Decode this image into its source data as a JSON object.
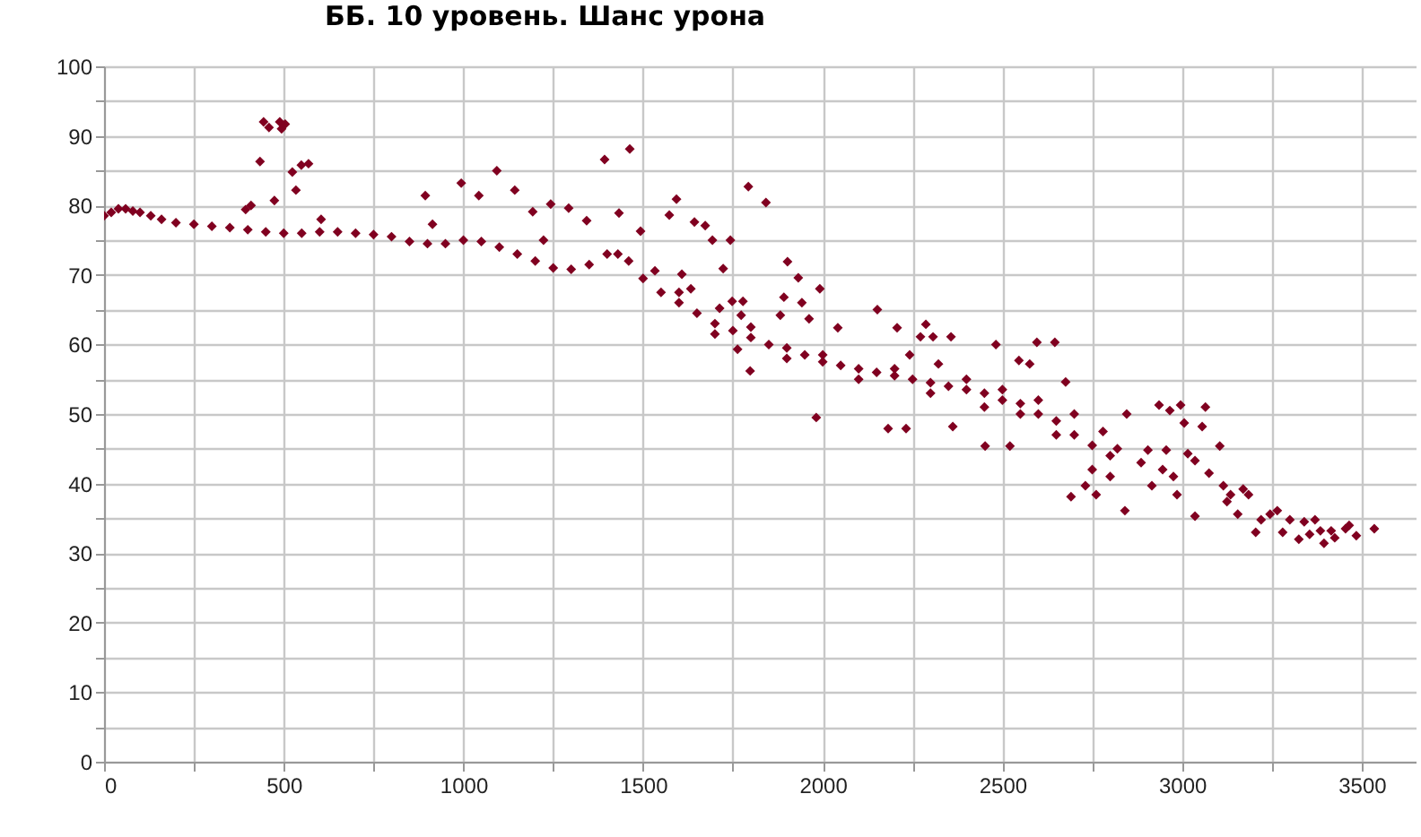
{
  "chart_data": {
    "type": "scatter",
    "title": "ББ. 10 уровень. Шанс урона",
    "color": "#800020",
    "marker": "diamond",
    "grid": true,
    "x": [
      0,
      20,
      40,
      60,
      80,
      100,
      130,
      160,
      200,
      250,
      300,
      350,
      400,
      450,
      500,
      550,
      600,
      650,
      700,
      750,
      800,
      850,
      900,
      950,
      1000,
      1050,
      1100,
      1150,
      1200,
      1250,
      1300,
      1350,
      1400,
      1430,
      1460,
      1500,
      1550,
      1600,
      1650,
      1700,
      1750,
      1800,
      1850,
      1900,
      1950,
      2000,
      2050,
      2100,
      2150,
      2200,
      2250,
      2300,
      2350,
      2400,
      2450,
      2500,
      2550,
      2600,
      2650,
      2700,
      2750,
      2800,
      1600,
      1700,
      1800,
      1900,
      2000,
      2100,
      2200,
      2300,
      2400,
      2450,
      2500,
      2550,
      2600,
      2650,
      2700,
      2750,
      2780,
      2800,
      2820,
      444,
      459,
      489,
      504,
      494,
      434,
      524,
      549,
      569,
      534,
      474,
      394,
      409,
      604,
      894,
      914,
      994,
      1043,
      1093,
      1143,
      1193,
      1223,
      1243,
      1293,
      1343,
      1393,
      1463,
      1433,
      1493,
      1533,
      1573,
      1593,
      1608,
      1633,
      1643,
      1673,
      1693,
      1723,
      1743,
      1793,
      1713,
      1748,
      1773,
      1778,
      1763,
      1798,
      1842,
      1902,
      1932,
      1992,
      1892,
      1942,
      1882,
      1962,
      2152,
      2042,
      2207,
      2287,
      2272,
      2307,
      2357,
      2482,
      2596,
      2646,
      2546,
      2576,
      2322,
      2242,
      2676,
      1982,
      2182,
      2232,
      2362,
      2452,
      2521,
      2691,
      2731,
      2761,
      2841,
      2846,
      2905,
      2936,
      2996,
      2966,
      3065,
      3006,
      3056,
      2956,
      3016,
      3036,
      3105,
      2916,
      2946,
      2886,
      2976,
      2986,
      3075,
      3115,
      3135,
      3125,
      3170,
      3185,
      3155,
      3036,
      3205,
      3220,
      3245,
      3265,
      3280,
      3300,
      3325,
      3340,
      3355,
      3370,
      3385,
      3395,
      3415,
      3425,
      3455,
      3465,
      3485,
      3535
    ],
    "values": [
      78.5,
      79,
      79.5,
      79.5,
      79.2,
      79,
      78.5,
      78,
      77.5,
      77.3,
      77,
      76.8,
      76.5,
      76.2,
      76,
      76,
      76.2,
      76.2,
      76,
      75.8,
      75.5,
      74.8,
      74.5,
      74.5,
      75,
      74.8,
      74,
      73,
      72,
      71,
      70.8,
      71.5,
      73,
      73,
      72,
      69.5,
      67.5,
      66,
      64.5,
      63,
      62,
      61,
      60,
      59.5,
      58.5,
      57.5,
      57,
      56.5,
      56,
      55.5,
      55,
      54.5,
      54,
      53.5,
      53,
      52,
      51.5,
      50,
      49,
      47,
      45.5,
      44,
      67.5,
      61.5,
      62.5,
      58,
      58.5,
      55,
      56.5,
      53,
      55,
      51,
      53.5,
      50,
      52,
      47,
      50,
      42,
      47.5,
      41,
      45,
      92,
      91.2,
      92,
      91.7,
      91,
      86.3,
      84.8,
      85.8,
      86,
      82.2,
      80.7,
      79.4,
      80,
      78,
      81.4,
      77.3,
      83.2,
      81.4,
      85,
      82.2,
      79.1,
      75,
      80.2,
      79.6,
      77.8,
      86.6,
      88.1,
      78.9,
      76.3,
      70.6,
      78.6,
      80.9,
      70.1,
      68,
      77.6,
      77.1,
      75,
      70.9,
      75,
      82.7,
      65.2,
      66.2,
      64.2,
      66.2,
      59.3,
      56.2,
      80.4,
      71.9,
      69.6,
      68,
      66.8,
      66,
      64.2,
      63.7,
      65,
      62.4,
      62.4,
      62.9,
      61.1,
      61.1,
      61.1,
      60,
      60.3,
      60.3,
      57.7,
      57.2,
      57.2,
      58.5,
      54.6,
      49.5,
      47.9,
      47.9,
      48.2,
      45.4,
      45.4,
      38.1,
      39.7,
      38.4,
      36.1,
      50,
      44.8,
      51.3,
      51.3,
      50.5,
      51,
      48.7,
      48.2,
      44.8,
      44.3,
      43.3,
      45.4,
      39.7,
      42,
      43,
      41,
      38.4,
      41.5,
      39.7,
      38.4,
      37.4,
      39.2,
      38.4,
      35.6,
      35.3,
      33,
      34.8,
      35.6,
      36.1,
      33,
      34.8,
      32,
      34.5,
      32.7,
      34.8,
      33.2,
      31.4,
      33.2,
      32.2,
      33.5,
      34,
      32.5,
      33.5
    ],
    "xlim": [
      0,
      3650
    ],
    "xticks": [
      0,
      {
        "value": 250,
        "label": null
      },
      500,
      {
        "value": 750,
        "label": null
      },
      1000,
      {
        "value": 1250,
        "label": null
      },
      1500,
      {
        "value": 1750,
        "label": null
      },
      2000,
      {
        "value": 2250,
        "label": null
      },
      2500,
      {
        "value": 2750,
        "label": null
      },
      3000,
      {
        "value": 3250,
        "label": null
      },
      3500
    ],
    "ylim": [
      0,
      100
    ],
    "yticks": [
      0,
      {
        "value": 5,
        "label": null
      },
      10,
      {
        "value": 15,
        "label": null
      },
      20,
      {
        "value": 25,
        "label": null
      },
      30,
      {
        "value": 35,
        "label": null
      },
      40,
      {
        "value": 45,
        "label": null
      },
      50,
      {
        "value": 55,
        "label": null
      },
      60,
      {
        "value": 65,
        "label": null
      },
      70,
      {
        "value": 75,
        "label": null
      },
      80,
      {
        "value": 85,
        "label": null
      },
      90,
      {
        "value": 95,
        "label": null
      },
      100
    ]
  }
}
